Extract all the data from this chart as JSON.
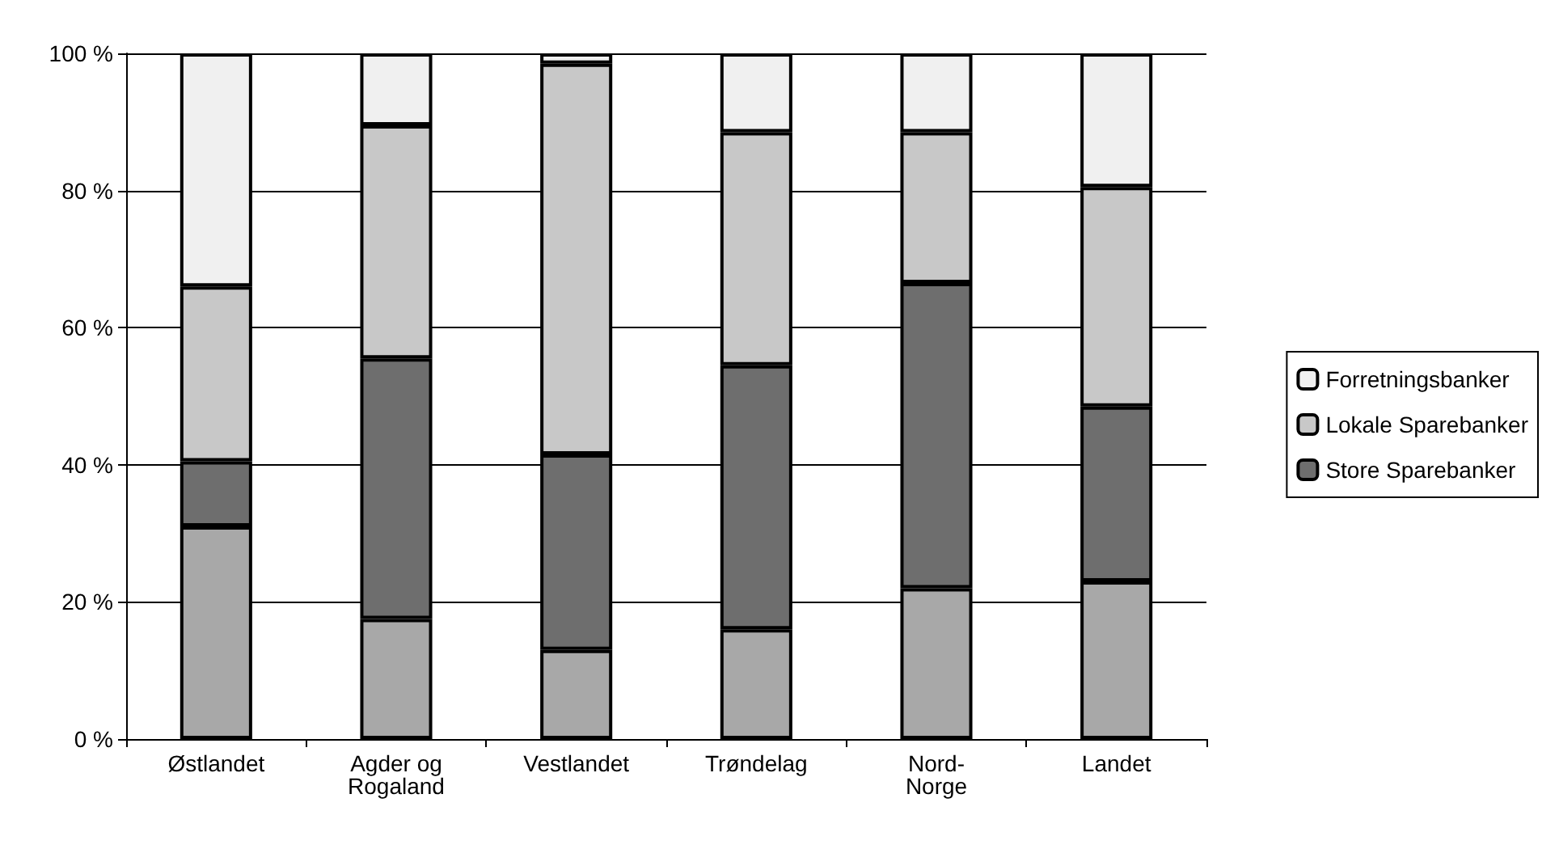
{
  "chart_data": {
    "type": "bar",
    "stacked": true,
    "categories": [
      "Østlandet",
      "Agder og Rogaland",
      "Vestlandet",
      "Trøndelag",
      "Nord-Norge",
      "Landet"
    ],
    "series": [
      {
        "color": "#a8a8a8",
        "values": [
          31,
          17.5,
          13,
          16,
          22,
          23
        ]
      },
      {
        "name": "Store Sparebanker",
        "color": "#6e6e6e",
        "values": [
          9.5,
          38,
          28.5,
          38.5,
          44.5,
          25.5
        ]
      },
      {
        "name": "Lokale Sparebanker",
        "color": "#c8c8c8",
        "values": [
          25.5,
          34,
          57,
          34,
          22,
          32
        ]
      },
      {
        "name": "Forretningsbanker",
        "color": "#f0f0f0",
        "values": [
          34,
          10.5,
          1.5,
          11.5,
          11.5,
          19.5
        ]
      }
    ],
    "ylim": [
      0,
      100
    ],
    "yticks": [
      {
        "value": 0,
        "label": "0 %"
      },
      {
        "value": 20,
        "label": "20 %"
      },
      {
        "value": 40,
        "label": "40 %"
      },
      {
        "value": 60,
        "label": "60 %"
      },
      {
        "value": 80,
        "label": "80 %"
      },
      {
        "value": 100,
        "label": "100 %"
      }
    ],
    "grid": "y",
    "legend": "right"
  }
}
